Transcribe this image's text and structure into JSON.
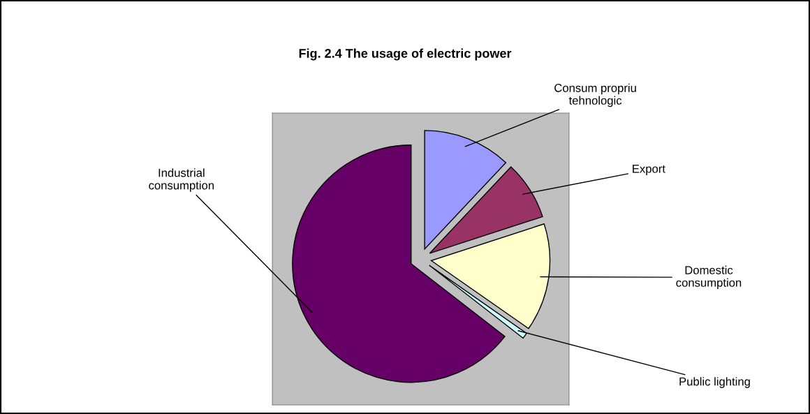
{
  "chart_data": {
    "type": "pie",
    "title": "Fig. 2.4 The usage of electric power",
    "categories": [
      "Consum propriu\ntehnologic",
      "Export",
      "Domestic\nconsumption",
      "Public lighting",
      "Industrial\nconsumption"
    ],
    "values": [
      12,
      8,
      14.7,
      0.8,
      64.5
    ],
    "colors": [
      "#9999ff",
      "#993366",
      "#ffffcc",
      "#ccffff",
      "#660066"
    ]
  }
}
